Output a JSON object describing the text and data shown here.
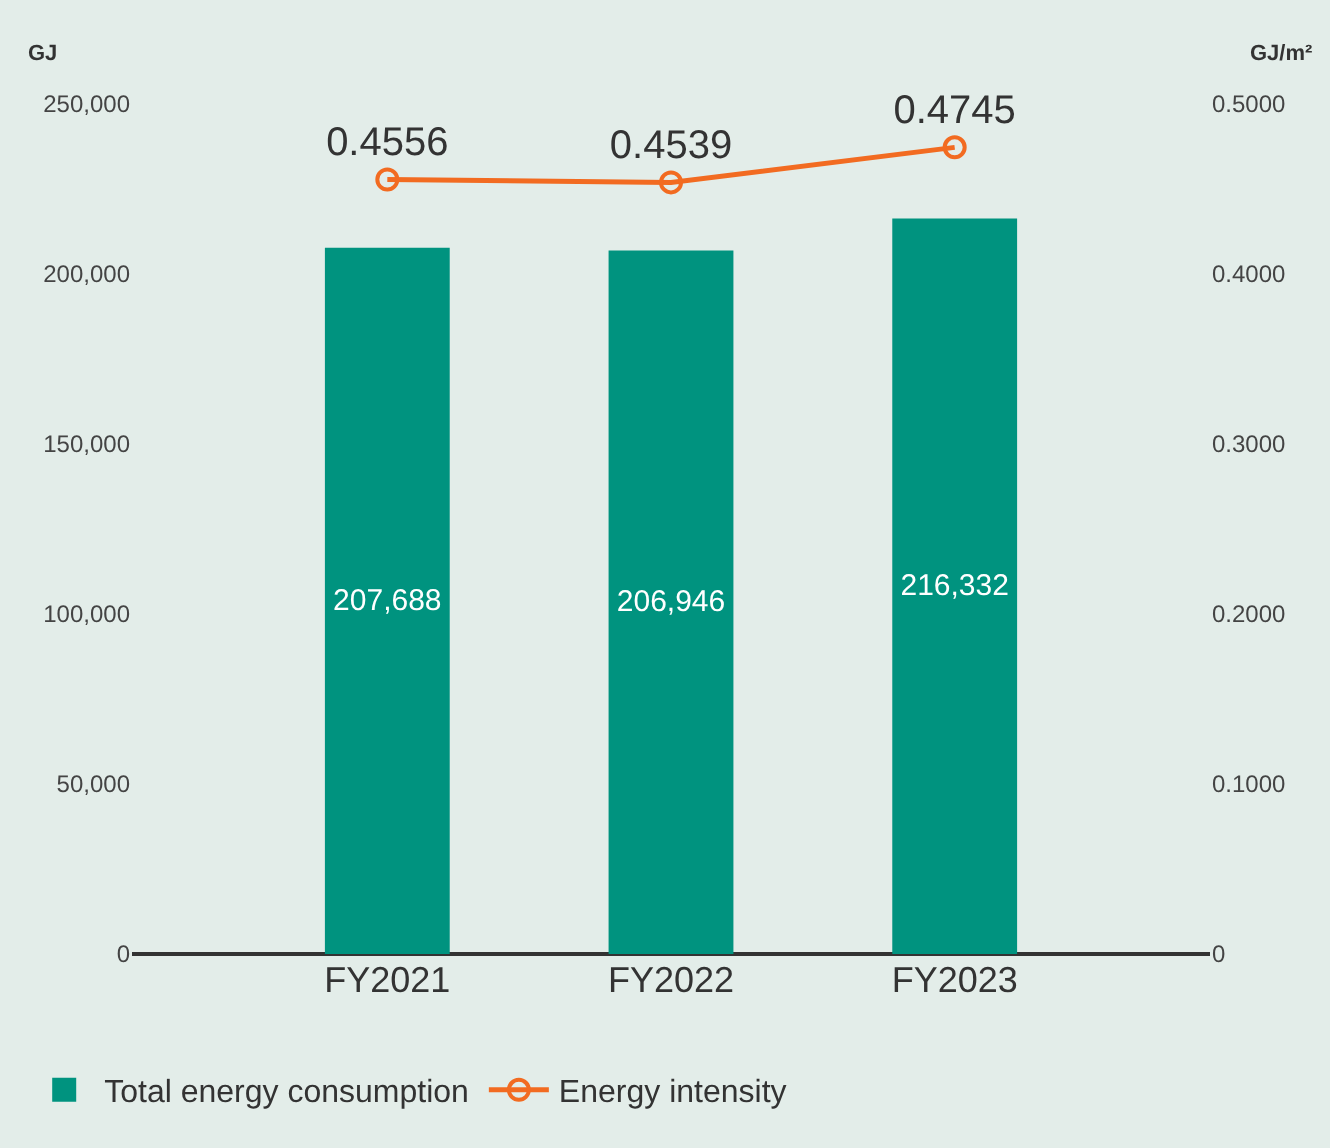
{
  "chart_data": {
    "type": "bar",
    "categories": [
      "FY2021",
      "FY2022",
      "FY2023"
    ],
    "ylabel": "GJ",
    "y2label": "GJ/m²",
    "series": [
      {
        "name": "Total energy consumption",
        "type": "bar",
        "color": "#00937f",
        "values": [
          207688,
          206946,
          216332
        ],
        "value_labels": [
          "207,688",
          "206,946",
          "216,332"
        ]
      },
      {
        "name": "Energy intensity",
        "type": "line",
        "axis": "y2",
        "color": "#f26b21",
        "values": [
          0.4556,
          0.4539,
          0.4745
        ],
        "marker": "circle",
        "line_style": "solid"
      }
    ],
    "ylim": [
      0,
      250000
    ],
    "yticks": [
      {
        "value": 0,
        "label": "0"
      },
      {
        "value": 50000,
        "label": "50,000"
      },
      {
        "value": 100000,
        "label": "100,000"
      },
      {
        "value": 150000,
        "label": "150,000"
      },
      {
        "value": 200000,
        "label": "200,000"
      },
      {
        "value": 250000,
        "label": "250,000"
      }
    ],
    "y2lim": [
      0,
      0.5
    ],
    "y2ticks": [
      {
        "value": 0,
        "label": "0"
      },
      {
        "value": 0.1,
        "label": "0.1000"
      },
      {
        "value": 0.2,
        "label": "0.2000"
      },
      {
        "value": 0.3,
        "label": "0.3000"
      },
      {
        "value": 0.4,
        "label": "0.4000"
      },
      {
        "value": 0.5,
        "label": "0.5000"
      }
    ],
    "data_labels": true,
    "grid": false,
    "legend": "bottom left"
  }
}
